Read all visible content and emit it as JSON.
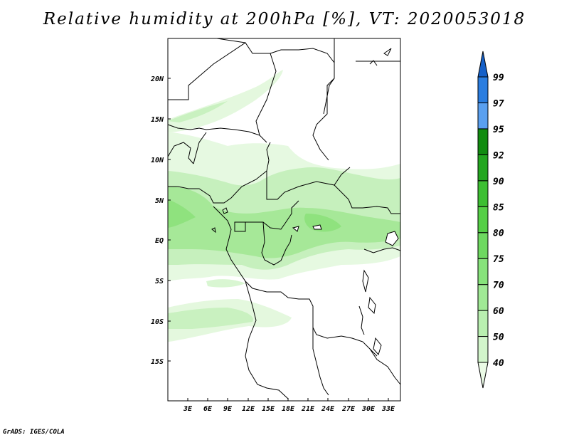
{
  "title": "Relative humidity at 200hPa [%], VT: 2020053018",
  "credit": "GrADS: IGES/COLA",
  "map": {
    "lat_labels": [
      "20N",
      "15N",
      "10N",
      "5N",
      "EQ",
      "5S",
      "10S",
      "15S"
    ],
    "lon_labels": [
      "3E",
      "6E",
      "9E",
      "12E",
      "15E",
      "18E",
      "21E",
      "24E",
      "27E",
      "30E",
      "33E"
    ]
  },
  "colorbar": {
    "labels": [
      "40",
      "50",
      "60",
      "70",
      "75",
      "80",
      "85",
      "90",
      "92",
      "95",
      "97",
      "99"
    ],
    "colors": [
      "#ebfbe6",
      "#d2f5cb",
      "#b9efb0",
      "#a0e995",
      "#87e37b",
      "#6ed960",
      "#55cf46",
      "#3cbf32",
      "#23a61f",
      "#118c10",
      "#5aa0f0",
      "#2a7de0",
      "#1560c8"
    ]
  }
}
